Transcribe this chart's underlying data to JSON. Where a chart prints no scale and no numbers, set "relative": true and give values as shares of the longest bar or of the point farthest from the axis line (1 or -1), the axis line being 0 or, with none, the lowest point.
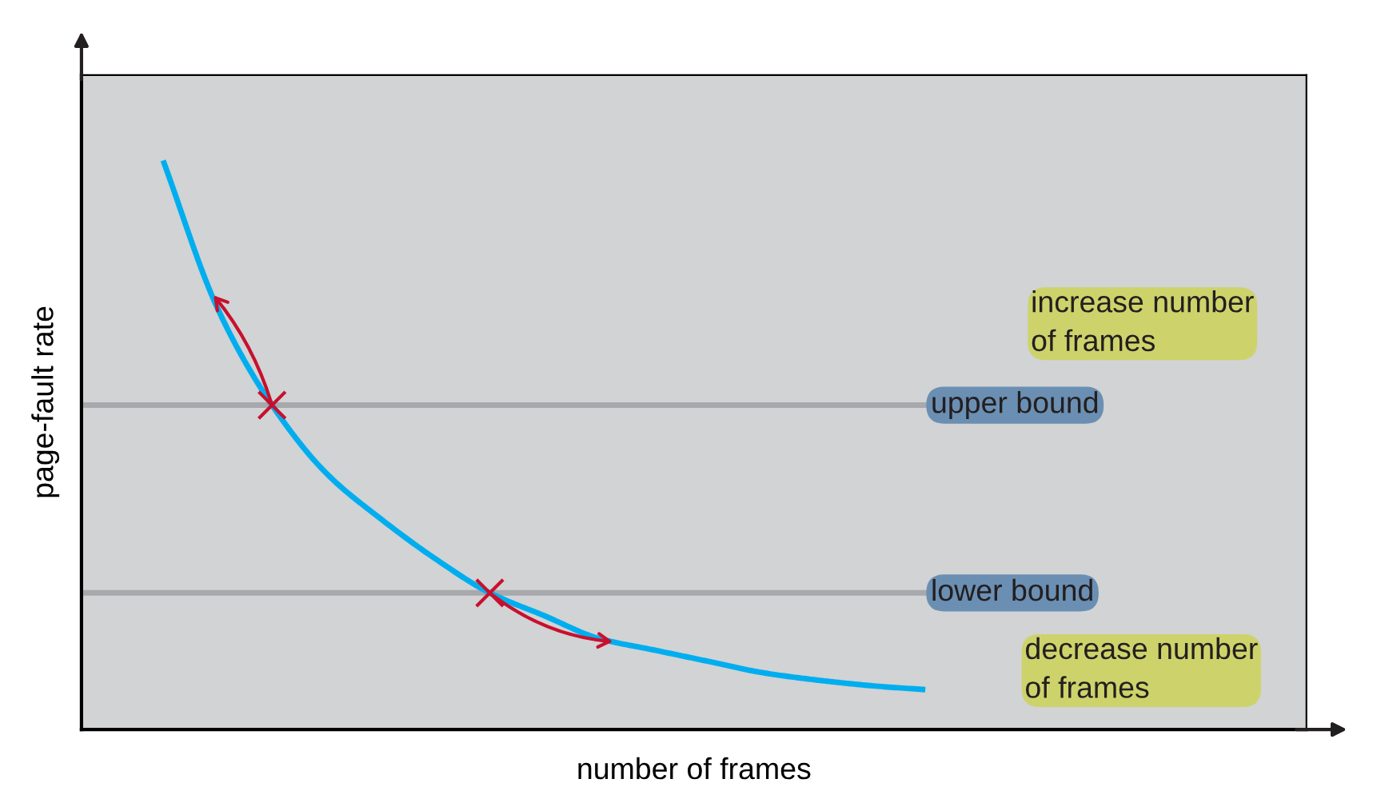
{
  "chart_data": {
    "type": "line",
    "relative": true,
    "xlabel": "number of frames",
    "ylabel": "page-fault rate",
    "categories": [
      null,
      null,
      null,
      null,
      null,
      null,
      null,
      null,
      null,
      null,
      null,
      null,
      null,
      null,
      null
    ],
    "series": [
      {
        "color": "#00aeef",
        "values": [
          1,
          0.74,
          0.57,
          0.45,
          0.37,
          0.3,
          0.24,
          0.2,
          0.16,
          0.14,
          0.12,
          0.1,
          0.087,
          0.077,
          0.07
        ]
      }
    ],
    "ref_lines": [
      {
        "axis": "y",
        "value": 0.57,
        "label": "upper bound",
        "color": "#a7a9ac"
      },
      {
        "axis": "y",
        "value": 0.24,
        "label": "lower bound",
        "color": "#a7a9ac"
      }
    ],
    "annotations": [
      "increase number\nof frames",
      "decrease number\nof frames"
    ],
    "marker": "none",
    "line_style": "solid"
  }
}
